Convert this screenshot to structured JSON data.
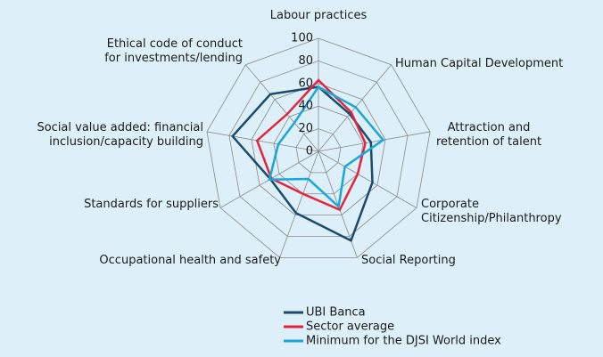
{
  "chart_data": {
    "type": "radar",
    "categories": [
      "Labour practices",
      "Human Capital Development",
      "Attraction and\nretention of talent",
      "Corporate\nCitizenship/Philanthropy",
      "Social Reporting",
      "Occupational health and safety",
      "Standards for suppliers",
      "Social value added: financial\ninclusion/capacity building",
      "Ethical code of conduct\nfor investments/lending"
    ],
    "series": [
      {
        "name": "UBI Banca",
        "color": "#1b4a6b",
        "values": [
          57,
          43,
          47,
          55,
          84,
          58,
          49,
          77,
          66
        ]
      },
      {
        "name": "Sector average",
        "color": "#e3243b",
        "values": [
          63,
          45,
          42,
          40,
          55,
          40,
          48,
          55,
          43
        ]
      },
      {
        "name": "Minimum for the DJSI World index",
        "color": "#1aa7d8",
        "values": [
          57,
          51,
          58,
          27,
          52,
          26,
          50,
          36,
          33
        ]
      }
    ],
    "ylim": [
      0,
      100
    ],
    "yticks": [
      0,
      20,
      40,
      60,
      80,
      100
    ],
    "grid": true
  }
}
